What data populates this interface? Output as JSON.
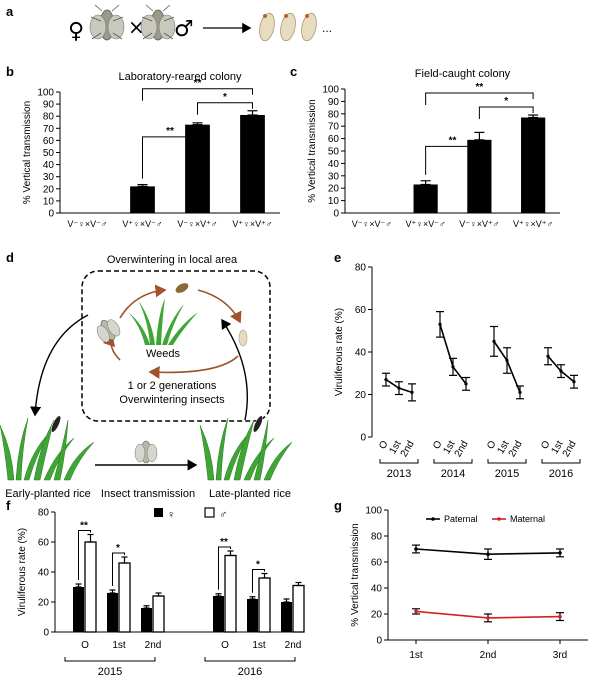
{
  "panel_letters": {
    "a": "a",
    "b": "b",
    "c": "c",
    "d": "d",
    "e": "e",
    "f": "f",
    "g": "g"
  },
  "panel_a": {
    "female_symbol": "♀",
    "cross_symbol": "×",
    "male_symbol": "♂",
    "ellipsis": "..."
  },
  "panel_d": {
    "title": "Overwintering in local area",
    "weeds": "Weeds",
    "note_line1": "1 or 2 generations",
    "note_line2": "Overwintering insects",
    "early": "Early-planted rice",
    "transmission": "Insect transmission",
    "late": "Late-planted rice"
  },
  "colors": {
    "black": "#000000",
    "red": "#d62020",
    "white": "#ffffff"
  },
  "chart_data": [
    {
      "id": "b",
      "type": "bar",
      "title": "Laboratory-reared colony",
      "ylabel": "% Vertical transmission",
      "ylim": [
        0,
        100
      ],
      "yticks": [
        0,
        10,
        20,
        30,
        40,
        50,
        60,
        70,
        80,
        90,
        100
      ],
      "categories": [
        "V⁻♀×V⁻♂",
        "V⁺♀×V⁻♂",
        "V⁻♀×V⁺♂",
        "V⁺♀×V⁺♂"
      ],
      "values": [
        0,
        22,
        73,
        81
      ],
      "errors": [
        0,
        1.5,
        1.5,
        3.5
      ],
      "significance": [
        {
          "from": 1,
          "to": 2,
          "label": "**"
        },
        {
          "from": 1,
          "to": 3,
          "label": "**"
        },
        {
          "from": 2,
          "to": 3,
          "label": "*"
        }
      ]
    },
    {
      "id": "c",
      "type": "bar",
      "title": "Field-caught colony",
      "ylabel": "% Vertical transmission",
      "ylim": [
        0,
        100
      ],
      "yticks": [
        0,
        10,
        20,
        30,
        40,
        50,
        60,
        70,
        80,
        90,
        100
      ],
      "categories": [
        "V⁻♀×V⁻♂",
        "V⁺♀×V⁻♂",
        "V⁻♀×V⁺♂",
        "V⁺♀×V⁺♂"
      ],
      "values": [
        0,
        23,
        59,
        77
      ],
      "errors": [
        0,
        3,
        6,
        2
      ],
      "significance": [
        {
          "from": 1,
          "to": 2,
          "label": "**"
        },
        {
          "from": 1,
          "to": 3,
          "label": "**"
        },
        {
          "from": 2,
          "to": 3,
          "label": "*"
        }
      ]
    },
    {
      "id": "e",
      "type": "line",
      "ylabel": "Viruliferous rate (%)",
      "ylim": [
        0,
        80
      ],
      "yticks": [
        0,
        20,
        40,
        60,
        80
      ],
      "x_labels": [
        "O",
        "1st",
        "2nd"
      ],
      "groups": [
        {
          "year": "2013",
          "values": [
            27,
            23,
            21
          ],
          "errors": [
            3,
            3,
            4
          ]
        },
        {
          "year": "2014",
          "values": [
            53,
            33,
            25
          ],
          "errors": [
            6,
            4,
            3
          ]
        },
        {
          "year": "2015",
          "values": [
            45,
            36,
            21
          ],
          "errors": [
            7,
            6,
            3
          ]
        },
        {
          "year": "2016",
          "values": [
            38,
            31,
            26
          ],
          "errors": [
            4,
            3,
            3
          ]
        }
      ]
    },
    {
      "id": "f",
      "type": "bar",
      "ylabel": "Viruliferous rate (%)",
      "ylim": [
        0,
        80
      ],
      "yticks": [
        0,
        20,
        40,
        60,
        80
      ],
      "legend": [
        {
          "name": "♀",
          "style": "filled"
        },
        {
          "name": "♂",
          "style": "open"
        }
      ],
      "legend_position": "top",
      "x_labels": [
        "O",
        "1st",
        "2nd"
      ],
      "groups": [
        {
          "year": "2015",
          "female": [
            30,
            26,
            16
          ],
          "female_err": [
            2,
            2,
            1.5
          ],
          "male": [
            60,
            46,
            24
          ],
          "male_err": [
            5,
            4,
            2
          ],
          "significance": [
            {
              "index": 0,
              "label": "**"
            },
            {
              "index": 1,
              "label": "*"
            }
          ]
        },
        {
          "year": "2016",
          "female": [
            24,
            22,
            20
          ],
          "female_err": [
            1.5,
            1.5,
            2
          ],
          "male": [
            51,
            36,
            31
          ],
          "male_err": [
            3,
            3,
            2
          ],
          "significance": [
            {
              "index": 0,
              "label": "**"
            },
            {
              "index": 1,
              "label": "*"
            }
          ]
        }
      ]
    },
    {
      "id": "g",
      "type": "line",
      "ylabel": "% Vertical transmission",
      "ylim": [
        0,
        100
      ],
      "yticks": [
        0,
        20,
        40,
        60,
        80,
        100
      ],
      "categories": [
        "1st",
        "2nd",
        "3rd"
      ],
      "legend_position": "top",
      "series": [
        {
          "name": "Paternal",
          "color": "#000000",
          "values": [
            70,
            66,
            67
          ],
          "errors": [
            3,
            4,
            3
          ]
        },
        {
          "name": "Maternal",
          "color": "#d62020",
          "values": [
            22,
            17,
            18
          ],
          "errors": [
            2,
            3,
            3
          ]
        }
      ]
    }
  ]
}
